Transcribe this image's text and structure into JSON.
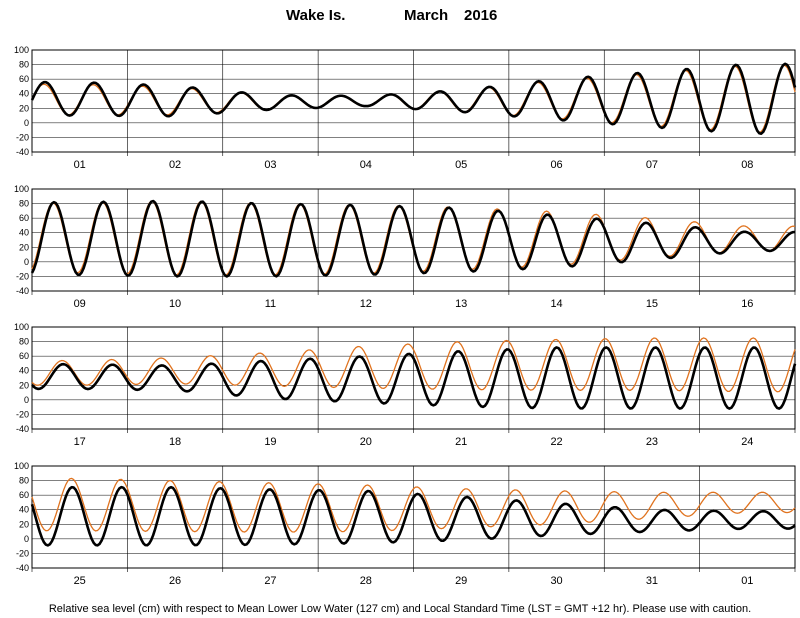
{
  "chart_data": {
    "type": "line",
    "title": {
      "station": "Wake Is.",
      "month": "March",
      "year": "2016"
    },
    "footnote": "Relative sea level (cm) with respect to Mean Lower Low Water (127 cm) and Local Standard Time (LST = GMT +12 hr). Please use with caution.",
    "ylim": [
      -40,
      100
    ],
    "yticks": [
      "100",
      "80",
      "60",
      "40",
      "20",
      "0",
      "-20",
      "-40"
    ],
    "grid": true,
    "colors": {
      "observed": "#000000",
      "predicted": "#e0731f"
    },
    "panels": [
      {
        "days": [
          "01",
          "02",
          "03",
          "04",
          "05",
          "06",
          "07",
          "08"
        ],
        "series": [
          {
            "key": "observed",
            "amplitude": [
              23,
              21,
              10,
              7,
              15,
              28,
              38,
              48
            ],
            "mean": [
              33,
              30,
              28,
              30,
              30,
              32,
              32,
              33
            ]
          },
          {
            "key": "predicted",
            "amplitude": [
              21,
              19,
              10,
              7,
              15,
              26,
              36,
              46
            ],
            "mean": [
              32,
              30,
              28,
              30,
              30,
              32,
              32,
              33
            ]
          }
        ]
      },
      {
        "days": [
          "09",
          "10",
          "11",
          "12",
          "13",
          "14",
          "15",
          "16"
        ],
        "series": [
          {
            "key": "observed",
            "amplitude": [
              50,
              52,
              50,
              48,
              44,
              36,
              25,
              13
            ],
            "mean": [
              32,
              32,
              30,
              30,
              30,
              28,
              28,
              28
            ]
          },
          {
            "key": "predicted",
            "amplitude": [
              48,
              51,
              49,
              47,
              43,
              37,
              27,
              17
            ],
            "mean": [
              33,
              33,
              31,
              31,
              32,
              32,
              33,
              32
            ]
          }
        ]
      },
      {
        "days": [
          "17",
          "18",
          "19",
          "20",
          "21",
          "22",
          "23",
          "24"
        ],
        "series": [
          {
            "key": "observed",
            "amplitude": [
              17,
              17,
              26,
              32,
              38,
              42,
              42,
              42
            ],
            "mean": [
              32,
              30,
              28,
              28,
              29,
              30,
              30,
              30
            ]
          },
          {
            "key": "predicted",
            "amplitude": [
              17,
              18,
              23,
              29,
              33,
              35,
              36,
              37
            ],
            "mean": [
              37,
              40,
              42,
              45,
              47,
              48,
              49,
              48
            ]
          }
        ]
      },
      {
        "days": [
          "25",
          "26",
          "27",
          "28",
          "29",
          "30",
          "31",
          "01"
        ],
        "series": [
          {
            "key": "observed",
            "amplitude": [
              40,
              40,
              38,
              36,
              30,
              22,
              15,
              12
            ],
            "mean": [
              31,
              31,
              30,
              30,
              28,
              27,
              25,
              26
            ]
          },
          {
            "key": "predicted",
            "amplitude": [
              36,
              35,
              34,
              32,
              27,
              23,
              18,
              14
            ],
            "mean": [
              47,
              45,
              43,
              42,
              42,
              43,
              46,
              50
            ]
          }
        ]
      }
    ]
  }
}
